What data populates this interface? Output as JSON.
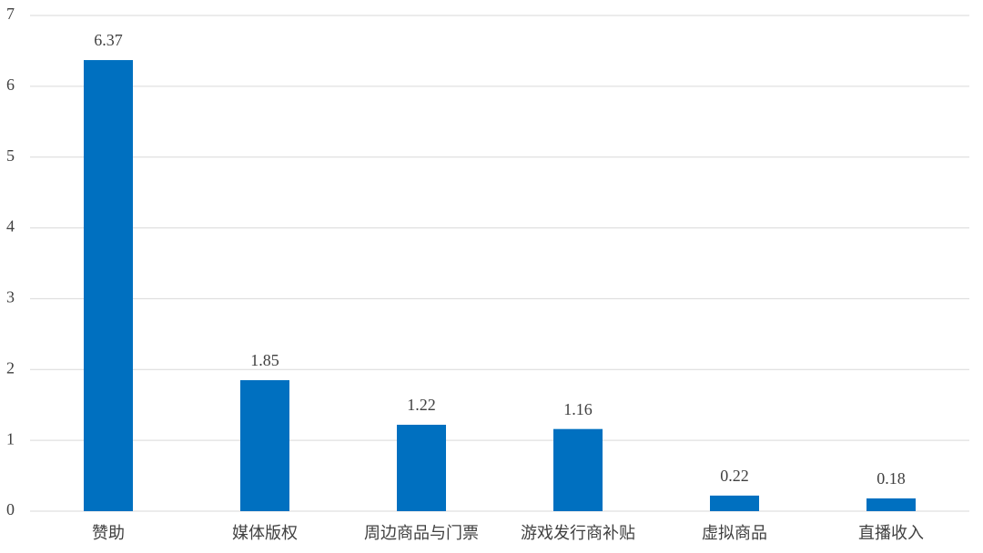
{
  "chart_data": {
    "type": "bar",
    "categories": [
      "赞助",
      "媒体版权",
      "周边商品与门票",
      "游戏发行商补贴",
      "虚拟商品",
      "直播收入"
    ],
    "values": [
      6.37,
      1.85,
      1.22,
      1.16,
      0.22,
      0.18
    ],
    "color": "#0070c0",
    "ylim": [
      0,
      7
    ],
    "yticks": [
      0,
      1,
      2,
      3,
      4,
      5,
      6,
      7
    ],
    "grid": true,
    "data_labels": true
  }
}
